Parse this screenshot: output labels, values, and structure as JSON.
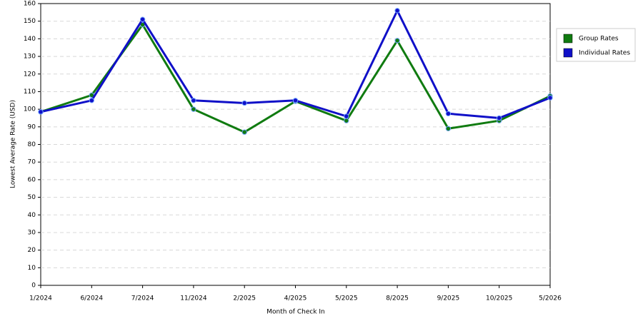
{
  "chart_data": {
    "type": "line",
    "x_label": "Month of Check In",
    "y_label": "Lowest Average Rate (USD)",
    "categories": [
      "1/2024",
      "6/2024",
      "7/2024",
      "11/2024",
      "2/2025",
      "4/2025",
      "5/2025",
      "8/2025",
      "9/2025",
      "10/2025",
      "5/2026"
    ],
    "series": [
      {
        "name": "Group Rates",
        "color": "#107b10",
        "values": [
          98.5,
          108,
          148,
          100,
          87,
          104.5,
          93.5,
          139,
          89,
          93.5,
          107.5
        ]
      },
      {
        "name": "Individual Rates",
        "color": "#1010c8",
        "values": [
          98.5,
          105,
          151,
          105,
          103.5,
          105,
          96,
          156,
          97.5,
          95,
          106.5
        ]
      }
    ],
    "ylim": [
      0,
      160
    ],
    "yticks": [
      0,
      10,
      20,
      30,
      40,
      50,
      60,
      70,
      80,
      90,
      100,
      110,
      120,
      130,
      140,
      150,
      160
    ],
    "grid": true,
    "legend": "right"
  }
}
